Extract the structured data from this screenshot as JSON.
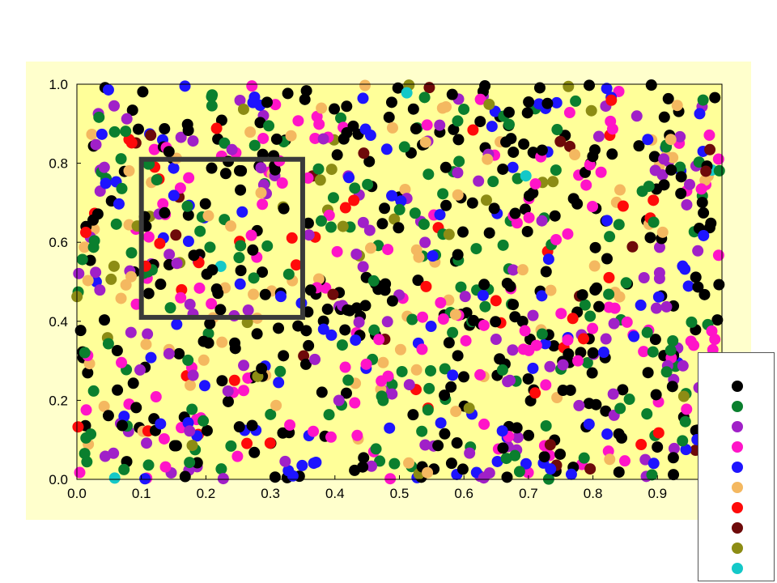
{
  "chart_data": {
    "type": "scatter",
    "title": "",
    "xlabel": "",
    "ylabel": "",
    "xlim": [
      0.0,
      1.0
    ],
    "ylim": [
      0.0,
      1.0
    ],
    "xticks": [
      "0.0",
      "0.1",
      "0.2",
      "0.3",
      "0.4",
      "0.5",
      "0.6",
      "0.7",
      "0.8",
      "0.9"
    ],
    "yticks": [
      "0.0",
      "0.2",
      "0.4",
      "0.6",
      "0.8",
      "1.0"
    ],
    "grid": false,
    "plot_background": "#FFFF99",
    "figure_background": "#FFFFCC",
    "legend_placement": "bottom-right",
    "highlight_box": {
      "x": [
        0.1,
        0.35
      ],
      "y": [
        0.41,
        0.81
      ],
      "color": "#3a3a3a"
    },
    "series": [
      {
        "color": "#000000",
        "count": 330
      },
      {
        "color": "#0A7F2E",
        "count": 175
      },
      {
        "color": "#A020C8",
        "count": 130
      },
      {
        "color": "#FF14C8",
        "count": 140
      },
      {
        "color": "#1E14FF",
        "count": 105
      },
      {
        "color": "#F4B860",
        "count": 85
      },
      {
        "color": "#FF0A0A",
        "count": 45
      },
      {
        "color": "#6E0A0A",
        "count": 20
      },
      {
        "color": "#8C8C14",
        "count": 30
      },
      {
        "color": "#14C8C8",
        "count": 5
      }
    ]
  }
}
